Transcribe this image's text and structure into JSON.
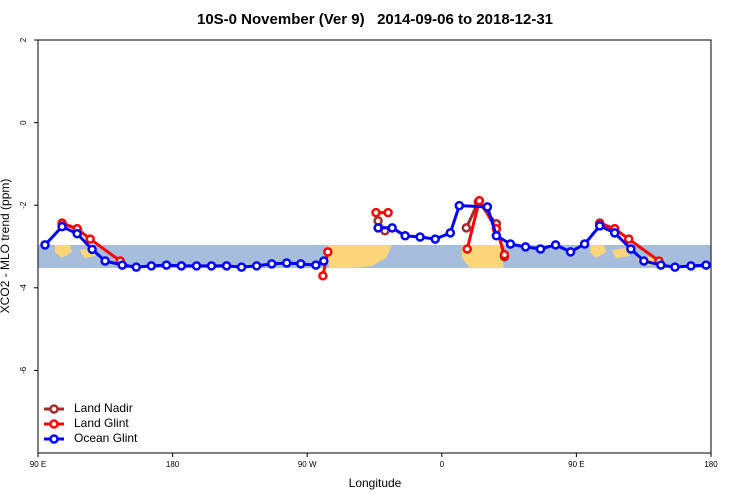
{
  "chart_data": {
    "type": "line",
    "title": "10S-0 November (Ver 9)   2014-09-06 to 2018-12-31",
    "x_label": "Longitude",
    "y_label": "XCO2 - MLO trend (ppm)",
    "xlim": [
      90,
      540
    ],
    "xticks": [
      {
        "value": 90,
        "label": "90 E"
      },
      180,
      {
        "value": 270,
        "label": "90 W"
      },
      {
        "value": 360,
        "label": "0"
      },
      {
        "value": 450,
        "label": "90 E"
      },
      {
        "value": 540,
        "label": "180"
      }
    ],
    "ylim": [
      -8,
      2
    ],
    "yticks": [
      -6,
      -4,
      -2,
      0,
      2
    ],
    "legend": "bottom-left",
    "series": [
      {
        "name": "Land Nadir",
        "color": "#a52a2a",
        "x": [
          106.1,
          116.2,
          null,
          317.4,
          322,
          null,
          376.4,
          384.4,
          396.5,
          401.9,
          null,
          465.6,
          475.6
        ],
        "values": [
          -2.43,
          -2.57,
          null,
          -2.38,
          -2.62,
          null,
          -2.55,
          -1.92,
          -2.45,
          -3.25,
          null,
          -2.43,
          -2.57
        ]
      },
      {
        "name": "Land Glint",
        "color": "#ff0000",
        "x": [
          106.1,
          116.2,
          124.9,
          145,
          null,
          280.5,
          283.8,
          null,
          316,
          324.1,
          null,
          377,
          385.1,
          396.5,
          401.9,
          null,
          465.6,
          475.6,
          485,
          505.2
        ],
        "values": [
          -2.45,
          -2.57,
          -2.82,
          -3.35,
          null,
          -3.71,
          -3.13,
          null,
          -2.18,
          -2.18,
          null,
          -3.06,
          -1.89,
          -2.57,
          -3.2,
          null,
          -2.47,
          -2.57,
          -2.82,
          -3.35
        ]
      },
      {
        "name": "Ocean Glint",
        "color": "#0000ff",
        "x": [
          94.7,
          106.1,
          116.2,
          126.2,
          134.9,
          146.3,
          155.7,
          165.8,
          175.9,
          185.9,
          196,
          206,
          216.1,
          226.1,
          236.2,
          246.3,
          256.3,
          265.7,
          275.8,
          281.1,
          null,
          317.4,
          326.8,
          335.5,
          345.5,
          355.6,
          365.7,
          371.7,
          390.5,
          396.5,
          405.9,
          416,
          426,
          436.1,
          446.1,
          455.5,
          465.6,
          475.6,
          486.4,
          495.1,
          506.5,
          515.9,
          526.6,
          536.7
        ],
        "values": [
          -2.96,
          -2.52,
          -2.69,
          -3.07,
          -3.35,
          -3.45,
          -3.5,
          -3.47,
          -3.45,
          -3.47,
          -3.47,
          -3.47,
          -3.47,
          -3.5,
          -3.47,
          -3.42,
          -3.4,
          -3.42,
          -3.45,
          -3.35,
          null,
          -2.55,
          -2.55,
          -2.74,
          -2.77,
          -2.82,
          -2.67,
          -2.01,
          -2.04,
          -2.74,
          -2.94,
          -3.01,
          -3.06,
          -2.96,
          -3.13,
          -2.94,
          -2.5,
          -2.67,
          -3.06,
          -3.35,
          -3.45,
          -3.5,
          -3.47,
          -3.45
        ]
      }
    ]
  }
}
